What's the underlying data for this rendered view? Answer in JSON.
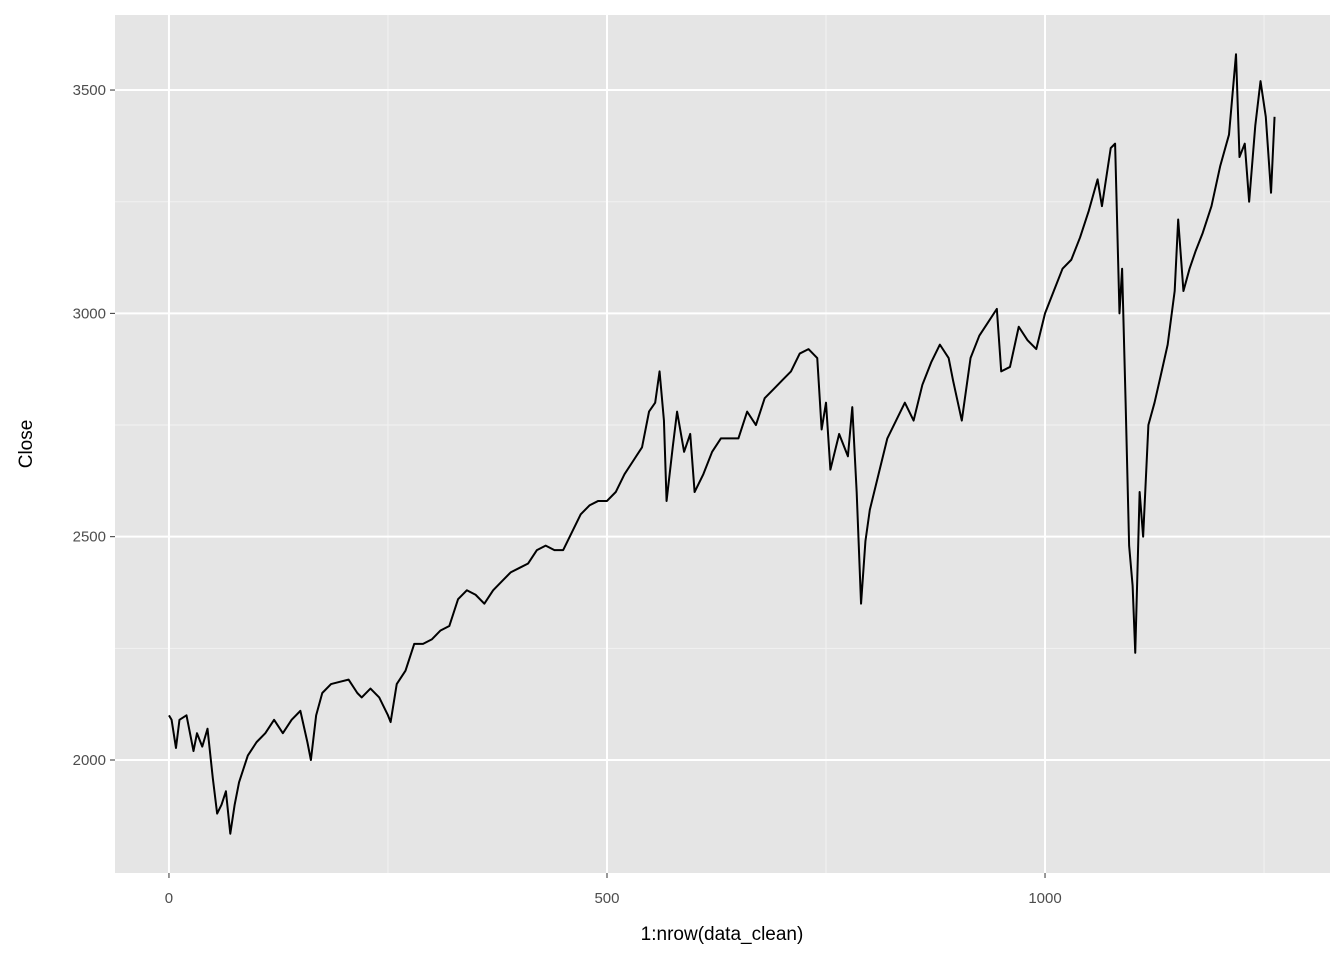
{
  "chart_data": {
    "type": "line",
    "x_label": "1:nrow(data_clean)",
    "y_label": "Close",
    "x": [
      0,
      3,
      8,
      12,
      20,
      28,
      32,
      38,
      44,
      50,
      55,
      60,
      65,
      70,
      75,
      80,
      90,
      100,
      110,
      120,
      130,
      140,
      150,
      158,
      162,
      168,
      175,
      185,
      195,
      205,
      215,
      220,
      230,
      240,
      250,
      253,
      260,
      270,
      280,
      290,
      300,
      310,
      320,
      330,
      340,
      350,
      360,
      370,
      380,
      390,
      400,
      410,
      420,
      430,
      440,
      450,
      460,
      470,
      480,
      490,
      500,
      510,
      520,
      530,
      540,
      548,
      555,
      560,
      565,
      568,
      575,
      580,
      588,
      595,
      600,
      610,
      620,
      630,
      640,
      650,
      660,
      670,
      680,
      690,
      700,
      710,
      720,
      730,
      740,
      745,
      750,
      755,
      765,
      775,
      780,
      785,
      790,
      795,
      800,
      810,
      820,
      830,
      840,
      850,
      860,
      870,
      880,
      890,
      895,
      905,
      915,
      925,
      935,
      945,
      950,
      960,
      970,
      980,
      990,
      1000,
      1010,
      1020,
      1030,
      1040,
      1050,
      1060,
      1065,
      1075,
      1080,
      1085,
      1088,
      1092,
      1096,
      1100,
      1103,
      1108,
      1112,
      1118,
      1125,
      1132,
      1140,
      1148,
      1152,
      1158,
      1165,
      1172,
      1180,
      1190,
      1200,
      1210,
      1218,
      1222,
      1228,
      1233,
      1240,
      1246,
      1252,
      1258,
      1262
    ],
    "series": [
      {
        "color": "#000000",
        "values": [
          2100,
          2090,
          2027,
          2090,
          2100,
          2020,
          2060,
          2030,
          2070,
          1960,
          1880,
          1900,
          1930,
          1835,
          1900,
          1950,
          2010,
          2040,
          2060,
          2090,
          2060,
          2090,
          2110,
          2040,
          2000,
          2100,
          2150,
          2170,
          2175,
          2180,
          2150,
          2140,
          2160,
          2140,
          2100,
          2085,
          2170,
          2200,
          2260,
          2260,
          2270,
          2290,
          2300,
          2360,
          2380,
          2370,
          2350,
          2380,
          2400,
          2420,
          2430,
          2440,
          2470,
          2480,
          2470,
          2470,
          2510,
          2550,
          2570,
          2580,
          2580,
          2600,
          2640,
          2670,
          2700,
          2780,
          2800,
          2870,
          2760,
          2580,
          2700,
          2780,
          2690,
          2730,
          2600,
          2640,
          2690,
          2720,
          2720,
          2720,
          2780,
          2750,
          2810,
          2830,
          2850,
          2870,
          2910,
          2920,
          2900,
          2740,
          2800,
          2650,
          2730,
          2680,
          2790,
          2600,
          2350,
          2490,
          2560,
          2640,
          2720,
          2760,
          2800,
          2760,
          2840,
          2890,
          2930,
          2900,
          2850,
          2760,
          2900,
          2950,
          2980,
          3010,
          2870,
          2880,
          2970,
          2940,
          2920,
          3000,
          3050,
          3100,
          3120,
          3170,
          3230,
          3300,
          3240,
          3370,
          3380,
          3000,
          3100,
          2800,
          2480,
          2390,
          2240,
          2600,
          2500,
          2750,
          2800,
          2860,
          2930,
          3050,
          3210,
          3050,
          3100,
          3140,
          3180,
          3240,
          3330,
          3400,
          3580,
          3350,
          3380,
          3250,
          3420,
          3520,
          3440,
          3270,
          3440
        ]
      }
    ],
    "xlim": [
      -61.6,
      1325.3
    ],
    "ylim": [
      1747,
      3668
    ],
    "xticks": [
      0,
      500,
      1000
    ],
    "yticks": [
      2000,
      2500,
      3000,
      3500
    ],
    "xminor": [
      250,
      750,
      1250
    ],
    "yminor": [
      2250,
      2750,
      3250
    ],
    "grid": true
  }
}
